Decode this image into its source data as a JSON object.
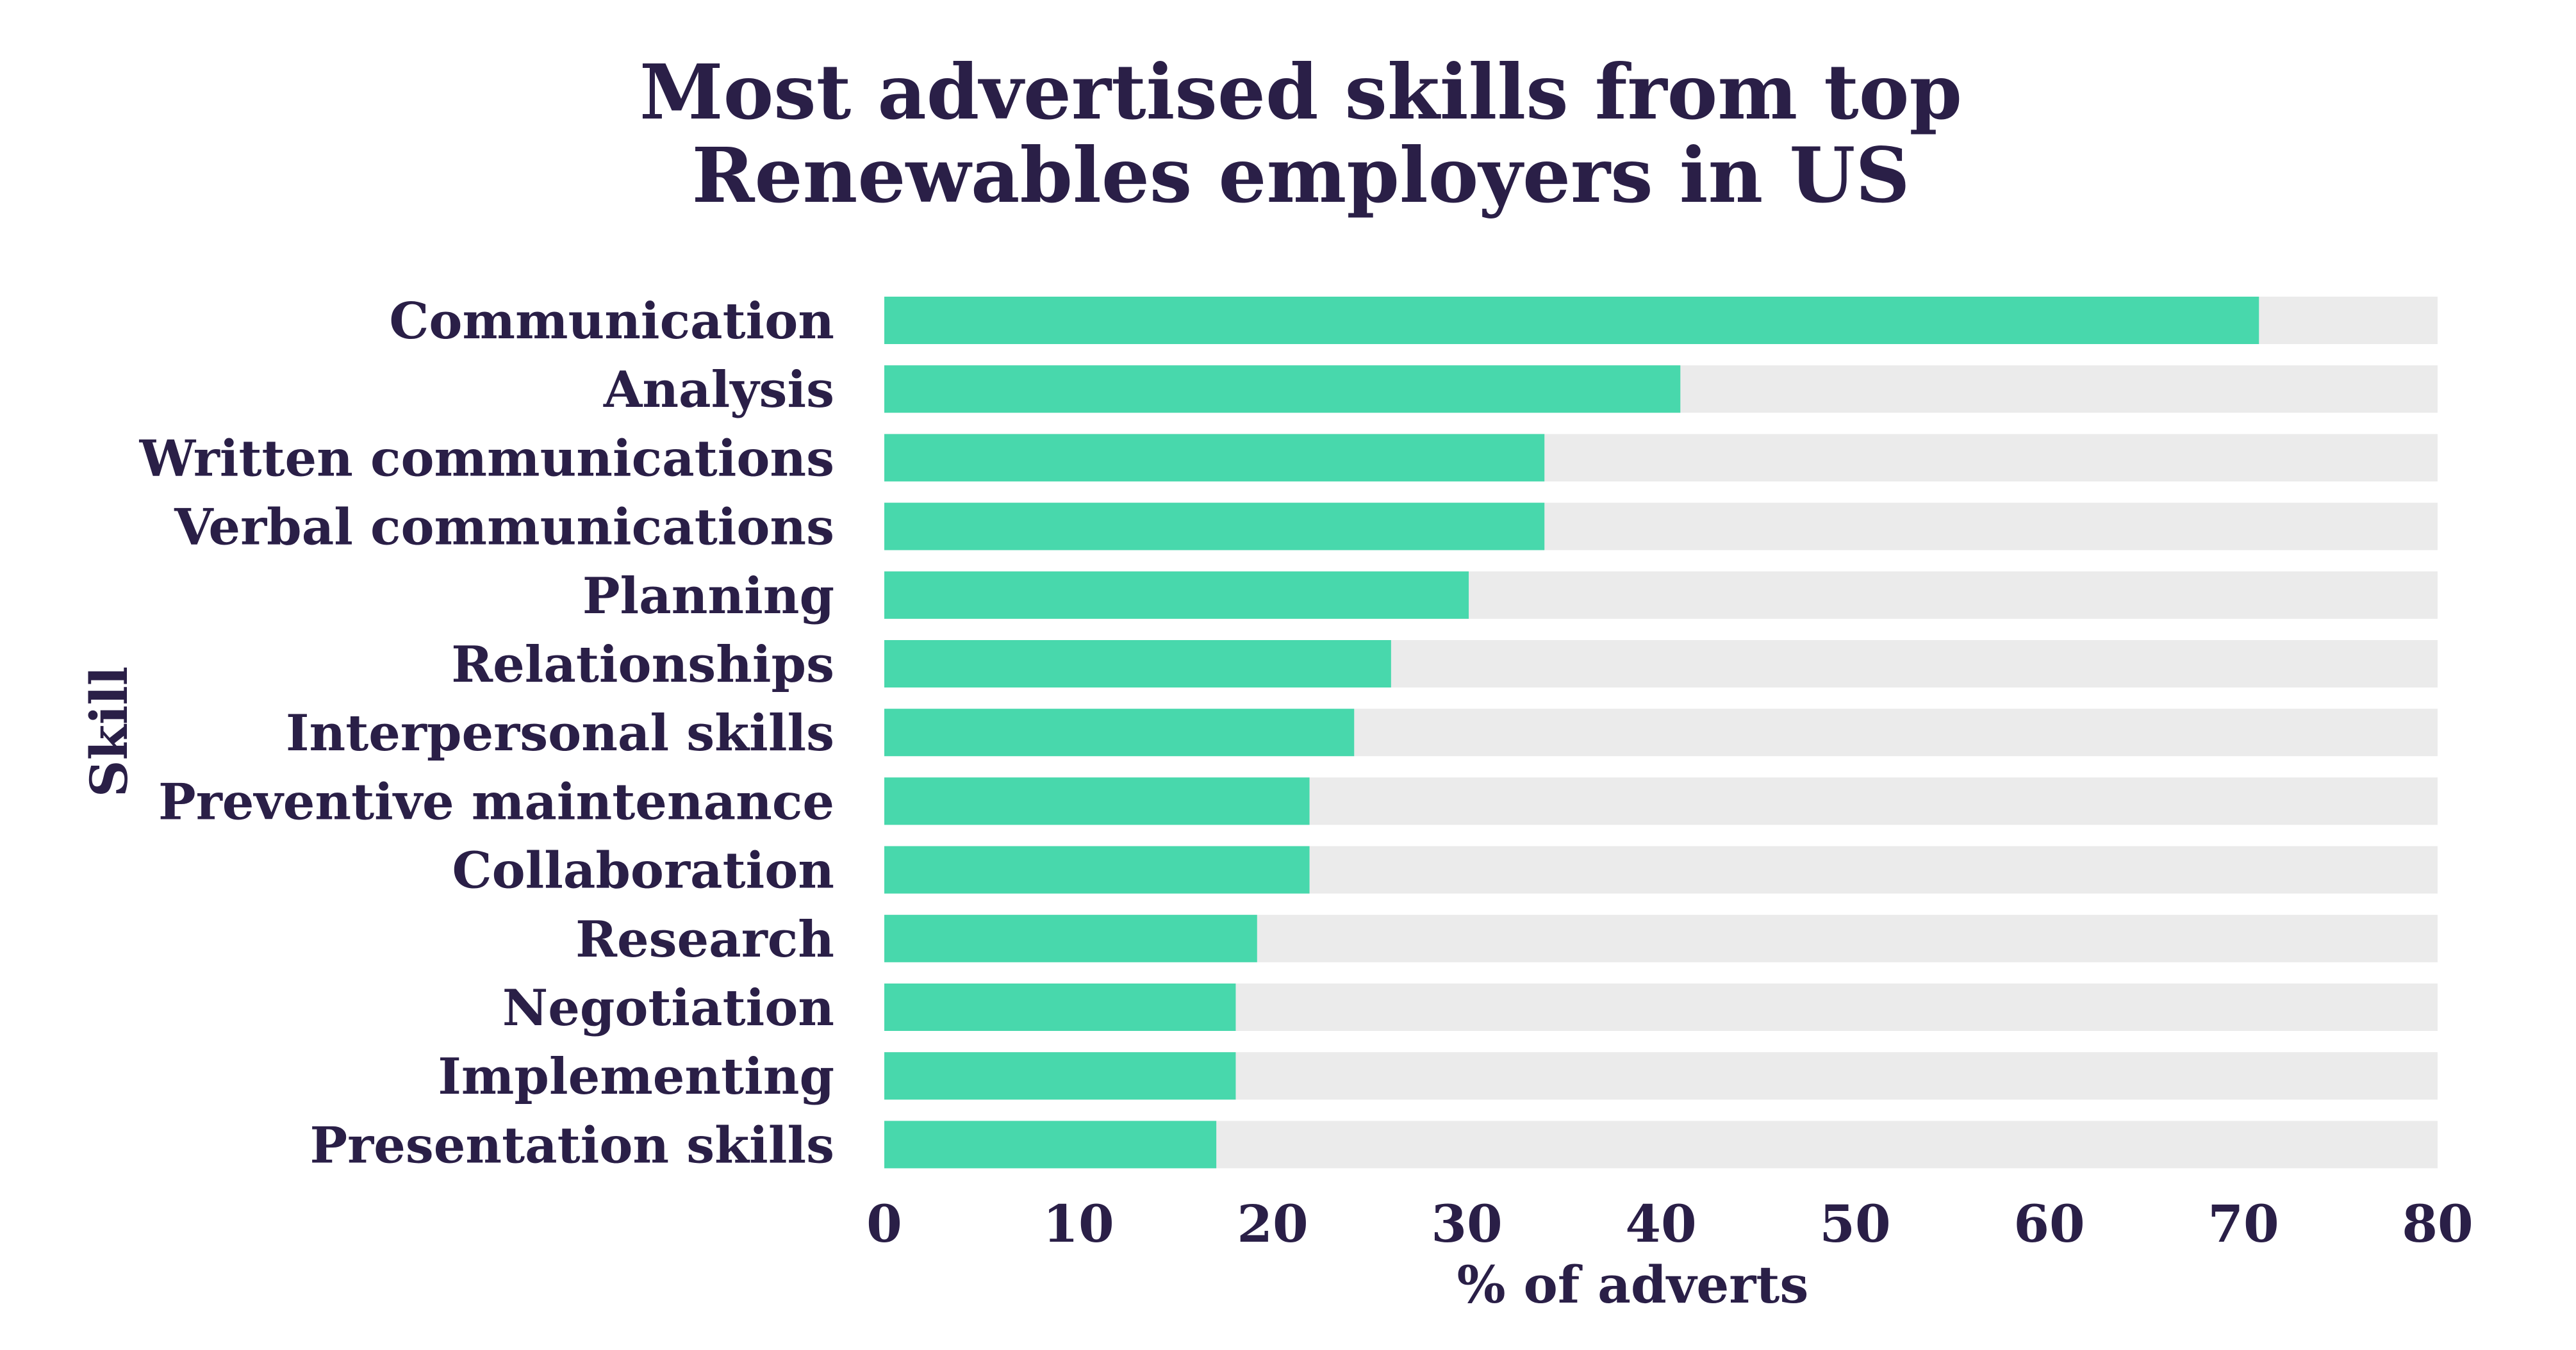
{
  "chart_data": {
    "type": "bar",
    "orientation": "horizontal",
    "title": "Most advertised skills from top Renewables employers in US",
    "title_lines": [
      "Most advertised skills from top",
      "Renewables employers in US"
    ],
    "xlabel": "% of adverts",
    "ylabel": "Skill",
    "xlim": [
      0,
      80
    ],
    "xticks": [
      0,
      10,
      20,
      30,
      40,
      50,
      60,
      70,
      80
    ],
    "grid": false,
    "legend": "none",
    "categories": [
      "Communication",
      "Analysis",
      "Written communications",
      "Verbal communications",
      "Planning",
      "Relationships",
      "Interpersonal skills",
      "Preventive maintenance",
      "Collaboration",
      "Research",
      "Negotiation",
      "Implementing",
      "Presentation skills"
    ],
    "values": [
      70.8,
      41.0,
      34.0,
      34.0,
      30.1,
      26.1,
      24.2,
      21.9,
      21.9,
      19.2,
      18.1,
      18.1,
      17.1
    ],
    "colors": {
      "bar": "#48d8ac",
      "track": "#ebebeb",
      "text": "#2a1f47"
    }
  }
}
